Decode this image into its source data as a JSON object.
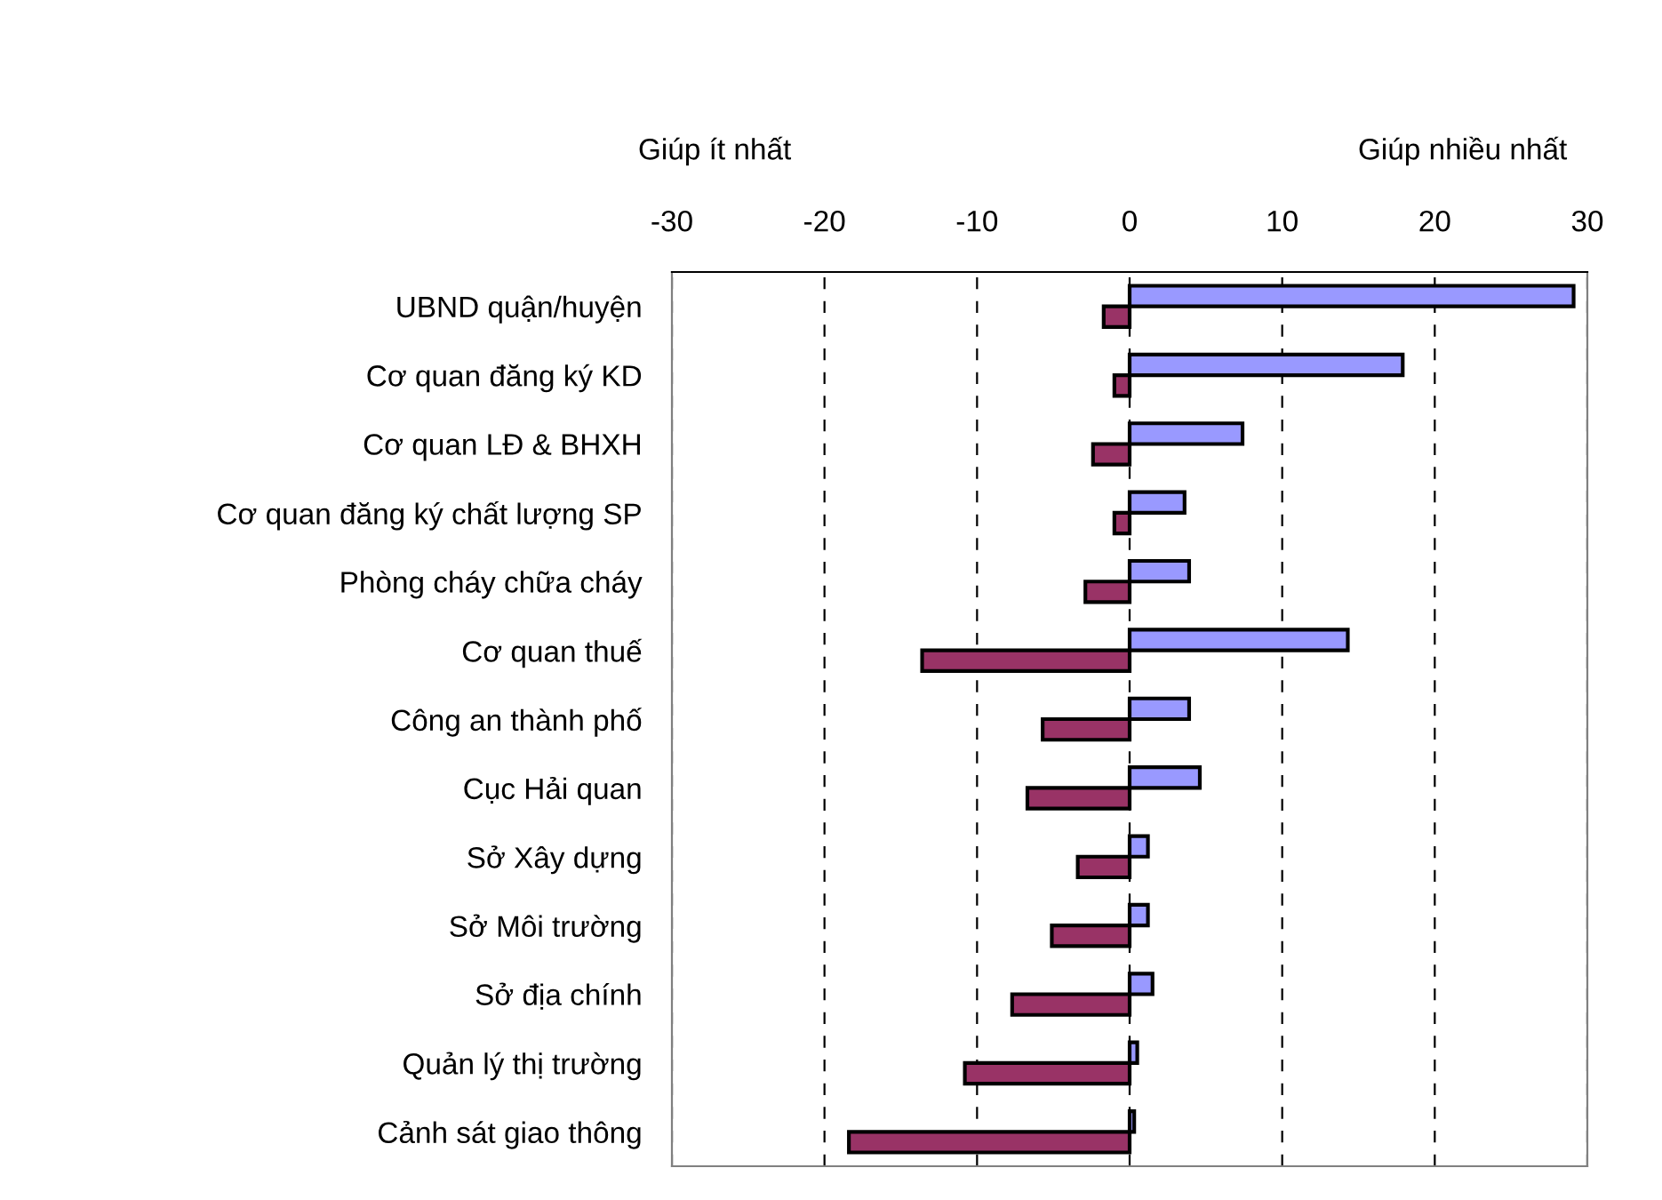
{
  "chart_data": {
    "type": "bar",
    "orientation": "horizontal",
    "categories": [
      "UBND quận/huyện",
      "Cơ quan đăng ký KD",
      "Cơ quan LĐ & BHXH",
      "Cơ quan đăng ký chất lượng SP",
      "Phòng cháy chữa cháy",
      "Cơ quan thuế",
      "Công an thành phố",
      "Cục Hải quan",
      "Sở Xây dựng",
      "Sở Môi trường",
      "Sở địa chính",
      "Quản lý thị trường",
      "Cảnh sát giao thông"
    ],
    "series": [
      {
        "color": "#9999ff",
        "values": [
          29.1,
          17.9,
          7.4,
          3.6,
          3.9,
          14.3,
          3.9,
          4.6,
          1.2,
          1.2,
          1.5,
          0.5,
          0.3
        ]
      },
      {
        "color": "#993366",
        "values": [
          -1.7,
          -1.0,
          -2.4,
          -1.0,
          -2.9,
          -13.6,
          -5.7,
          -6.7,
          -3.4,
          -5.1,
          -7.7,
          -10.8,
          -18.4
        ]
      }
    ],
    "xlim": [
      -30,
      30
    ],
    "xticks": [
      -30,
      -20,
      -10,
      0,
      10,
      20,
      30
    ],
    "grid": "x",
    "legend": false,
    "annotations": [
      "Giúp ít nhất",
      "Giúp nhiều nhất"
    ]
  }
}
